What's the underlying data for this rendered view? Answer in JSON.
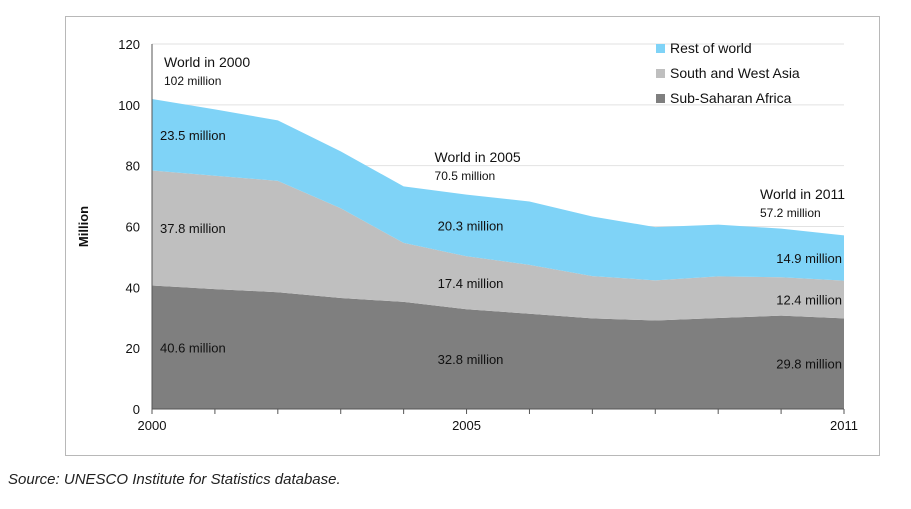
{
  "chart_data": {
    "type": "area",
    "stacked": true,
    "ylabel": "Million",
    "xlabel": "",
    "ylim": [
      0,
      120
    ],
    "yticks": [
      0,
      20,
      40,
      60,
      80,
      100,
      120
    ],
    "xlim": [
      2000,
      2011
    ],
    "xtick_labels": [
      "2000",
      "2005",
      "2011"
    ],
    "xticks": [
      2000,
      2005,
      2011
    ],
    "grid": true,
    "legend_position": "top-right",
    "x": [
      2000,
      2001,
      2002,
      2003,
      2004,
      2005,
      2006,
      2007,
      2008,
      2009,
      2010,
      2011
    ],
    "series": [
      {
        "name": "Sub-Saharan Africa",
        "color": "#7f7f7f",
        "values": [
          40.6,
          39.4,
          38.4,
          36.5,
          35.2,
          32.8,
          31.3,
          29.8,
          29.1,
          29.9,
          30.7,
          29.8
        ]
      },
      {
        "name": "South and West Asia",
        "color": "#bfbfbf",
        "values": [
          37.8,
          37.3,
          36.6,
          29.5,
          19.4,
          17.4,
          16.1,
          13.9,
          13.2,
          13.7,
          12.6,
          12.4
        ]
      },
      {
        "name": "Rest of world",
        "color": "#7fd3f7",
        "values": [
          23.5,
          21.8,
          19.9,
          18.7,
          18.6,
          20.3,
          20.8,
          19.6,
          17.5,
          17.0,
          16.0,
          14.9
        ]
      }
    ],
    "legend_order": [
      "Rest of world",
      "South and West Asia",
      "Sub-Saharan Africa"
    ],
    "annotations": [
      {
        "x": 2000,
        "title": "World in 2000",
        "value": "102 million"
      },
      {
        "x": 2005,
        "title": "World in 2005",
        "value": "70.5 million"
      },
      {
        "x": 2011,
        "title": "World in 2011",
        "value": "57.2 million"
      }
    ],
    "segment_labels": {
      "2000": [
        "40.6 million",
        "37.8 million",
        "23.5 million"
      ],
      "2005": [
        "32.8 million",
        "17.4 million",
        "20.3 million"
      ],
      "2011": [
        "29.8 million",
        "12.4 million",
        "14.9 million"
      ]
    }
  },
  "source_note": "Source: UNESCO Institute for Statistics database."
}
